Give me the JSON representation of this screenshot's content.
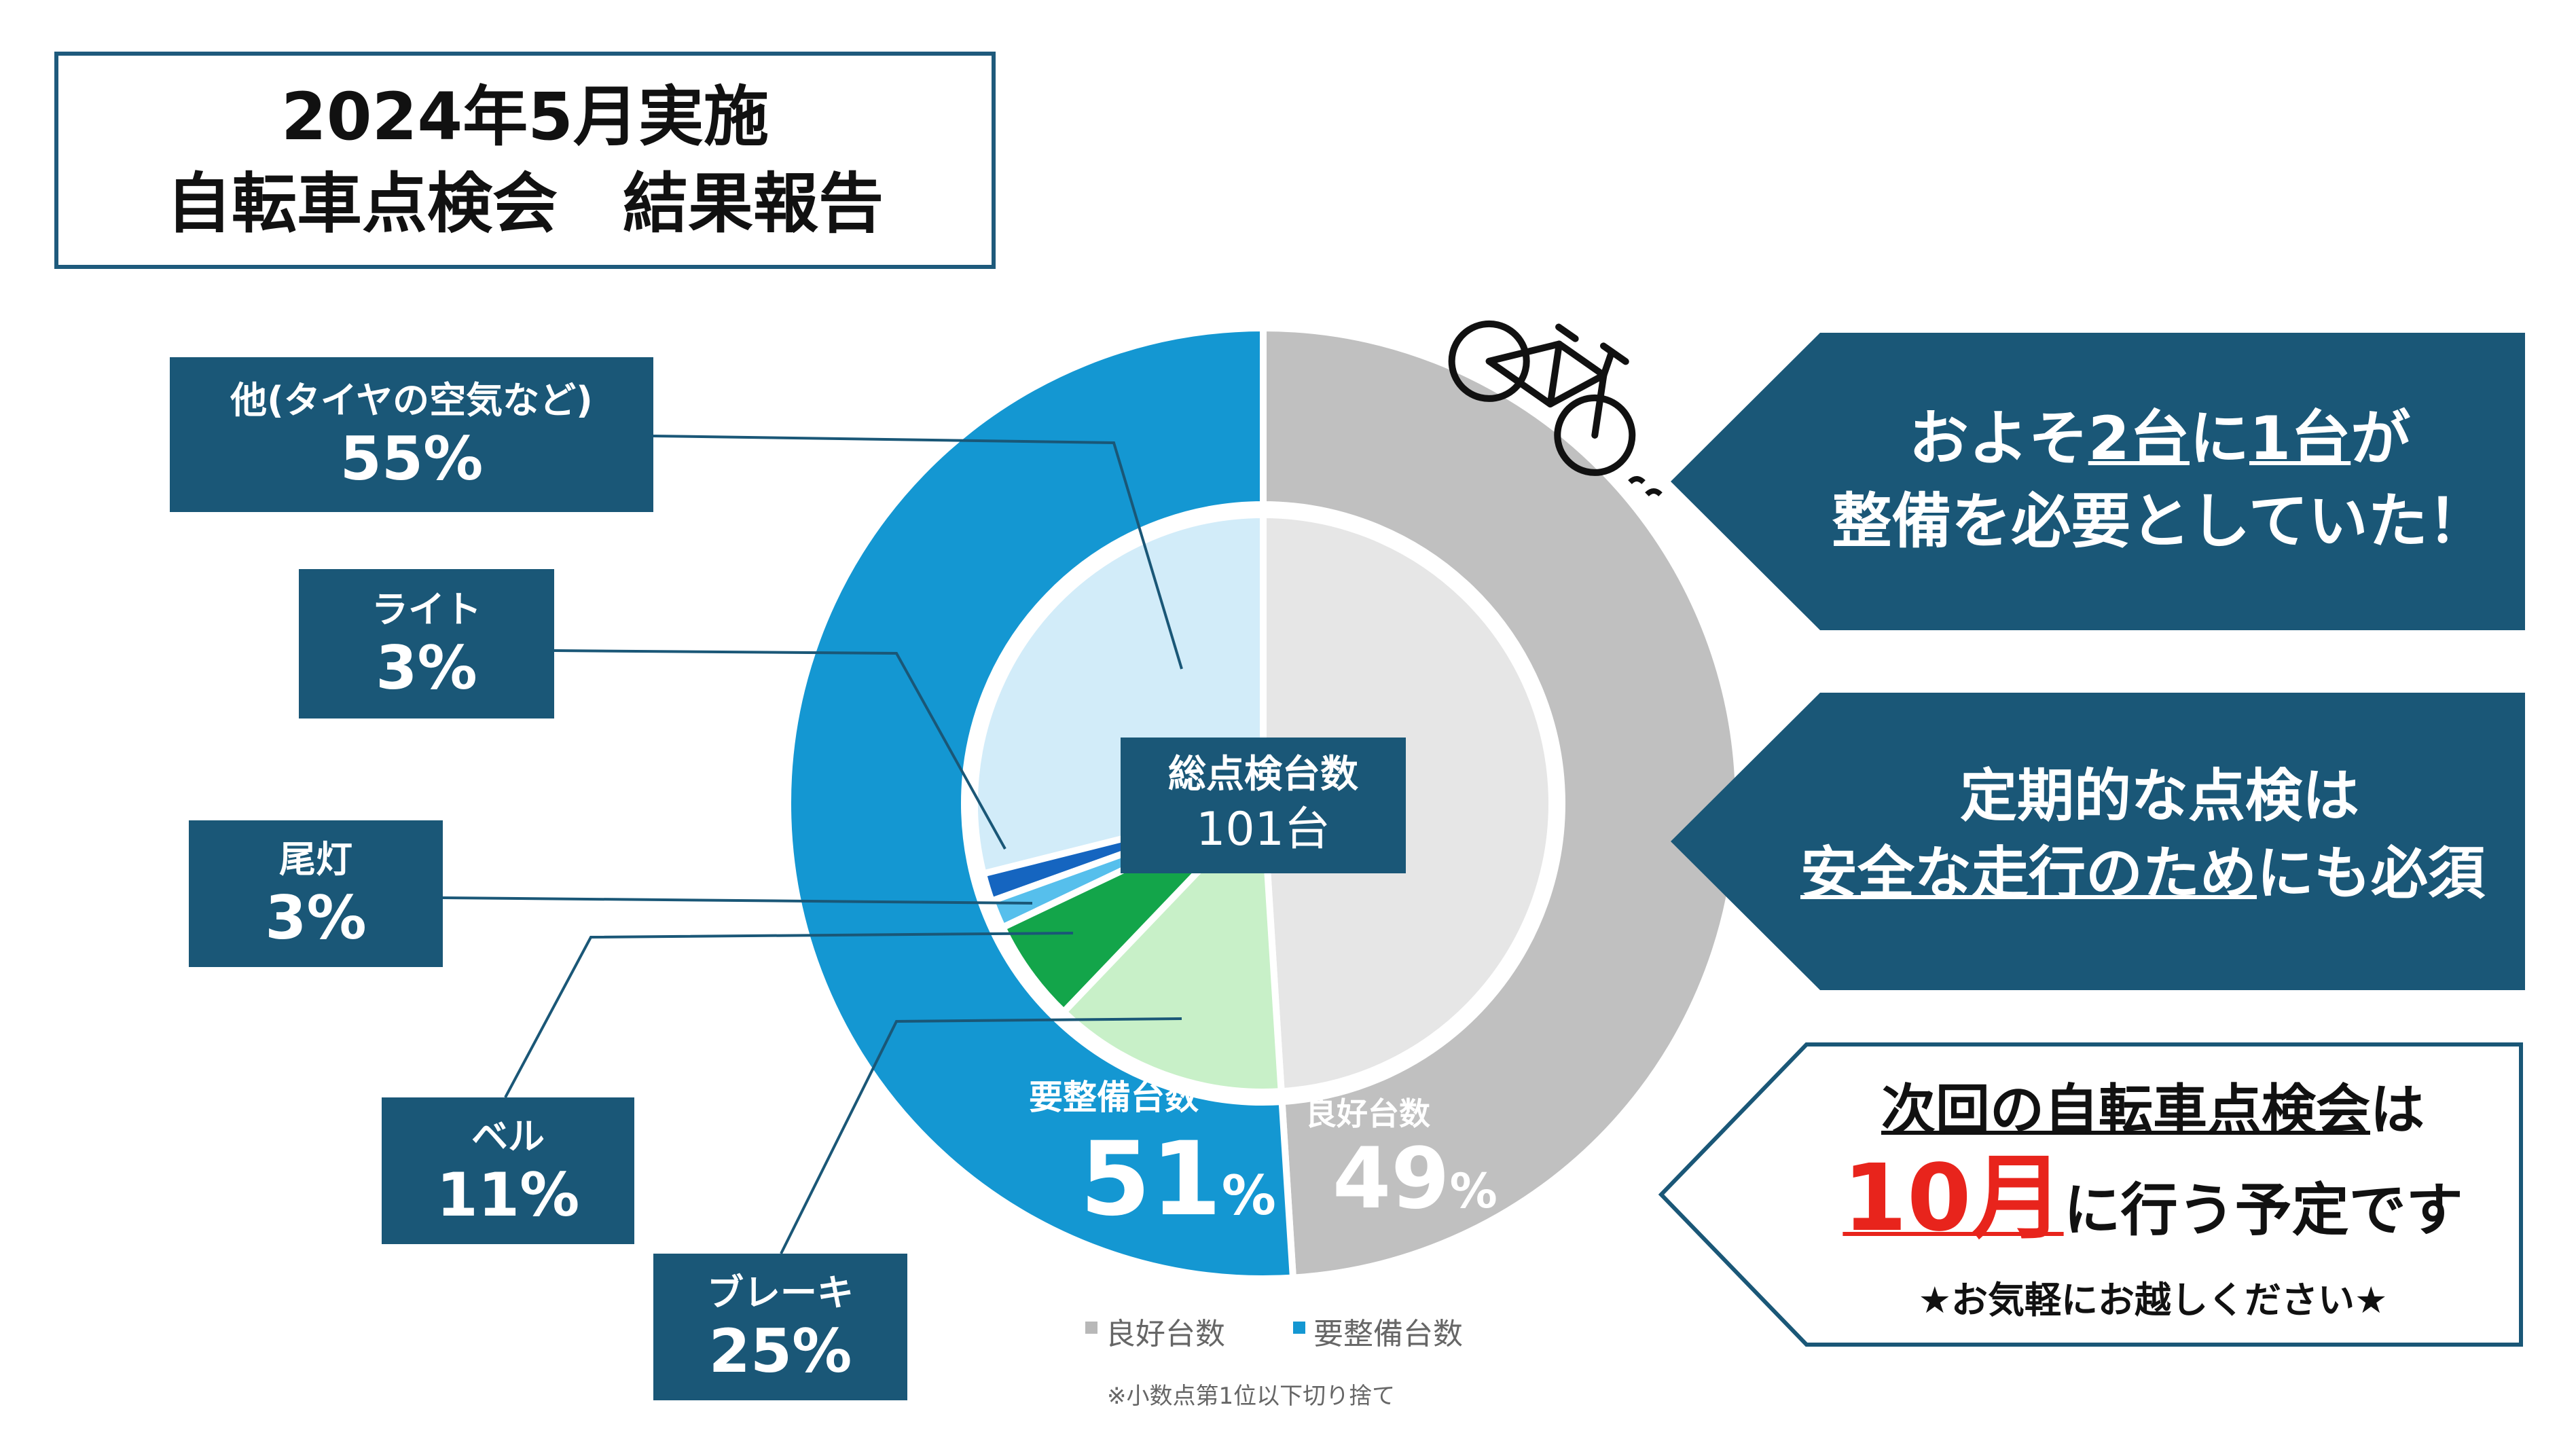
{
  "title": {
    "line1": "2024年5月実施",
    "line2": "自転車点検会　結果報告"
  },
  "colors": {
    "navy": "#1a5777",
    "outer_blue": "#1497d2",
    "outer_gray": "#c0c0c0",
    "inner_gray": "#e6e6e6",
    "inner_light_blue": "#d2ecf9",
    "inner_light_green": "#c8f0c8",
    "inner_green": "#13a54a",
    "inner_sky": "#56bfec",
    "inner_dark_blue": "#1565c0",
    "red": "#e8241c"
  },
  "chart_data": [
    {
      "type": "pie",
      "ring": "outer",
      "title": "",
      "categories": [
        "要整備台数",
        "良好台数"
      ],
      "values": [
        51,
        49
      ],
      "unit": "%",
      "labels": {
        "need_name": "要整備台数",
        "need_value": "51",
        "good_name": "良好台数",
        "good_value": "49",
        "percent_sign": "%"
      },
      "legend": [
        "良好台数",
        "要整備台数"
      ],
      "legend_position": "bottom",
      "footnote": "※小数点第1位以下切り捨て"
    },
    {
      "type": "pie",
      "ring": "inner",
      "categories": [
        "他(タイヤの空気など)",
        "ライト",
        "尾灯",
        "ベル",
        "ブレーキ"
      ],
      "values": [
        55,
        3,
        3,
        11,
        25
      ],
      "unit": "%"
    }
  ],
  "center": {
    "label": "総点検台数",
    "value": "101台"
  },
  "breakdown": [
    {
      "name": "他(タイヤの空気など)",
      "percent": "55%"
    },
    {
      "name": "ライト",
      "percent": "3%"
    },
    {
      "name": "尾灯",
      "percent": "3%"
    },
    {
      "name": "ベル",
      "percent": "11%"
    },
    {
      "name": "ブレーキ",
      "percent": "25%"
    }
  ],
  "right_notes": {
    "note1": {
      "line1_pre": "およそ",
      "line1_u1": "2台",
      "line1_mid": "に",
      "line1_u2": "1台",
      "line1_post": "が",
      "line2": "整備を必要としていた！"
    },
    "note2": {
      "line1": "定期的な点検は",
      "line2_u": "安全な走行のため",
      "line2_post": "にも必須"
    },
    "note3": {
      "line1_u": "次回の自転車点検会",
      "line1_post": "は",
      "line2_red": "10月",
      "line2_post": "に行う予定です",
      "line3": "★お気軽にお越しください★"
    }
  },
  "icons": {
    "bicycle": "bicycle-icon"
  }
}
